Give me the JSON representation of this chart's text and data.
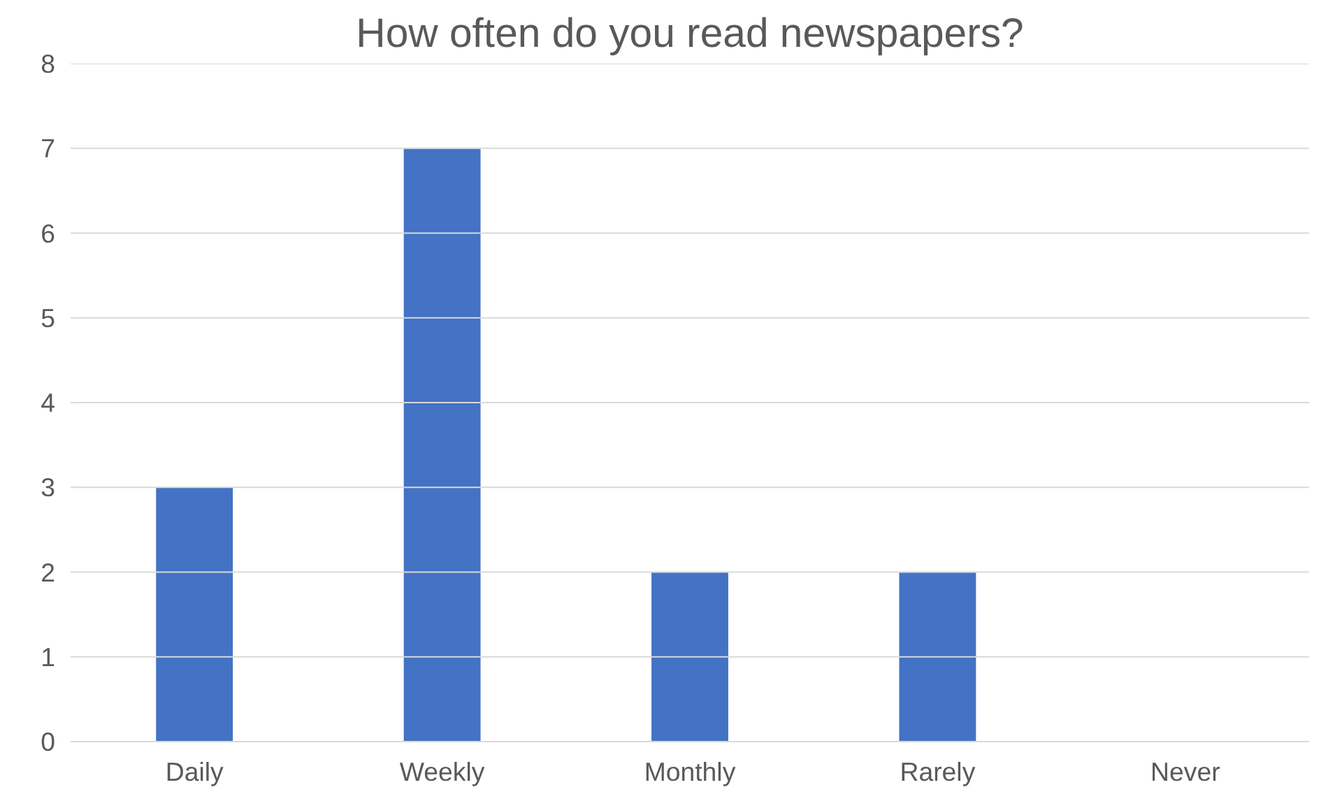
{
  "chart_data": {
    "type": "bar",
    "title": "How often do you read newspapers?",
    "categories": [
      "Daily",
      "Weekly",
      "Monthly",
      "Rarely",
      "Never"
    ],
    "values": [
      3,
      7,
      2,
      2,
      0
    ],
    "color": "#4472c4",
    "ylim": [
      0,
      8
    ],
    "yticks": [
      0,
      1,
      2,
      3,
      4,
      5,
      6,
      7,
      8
    ],
    "grid": "y"
  }
}
